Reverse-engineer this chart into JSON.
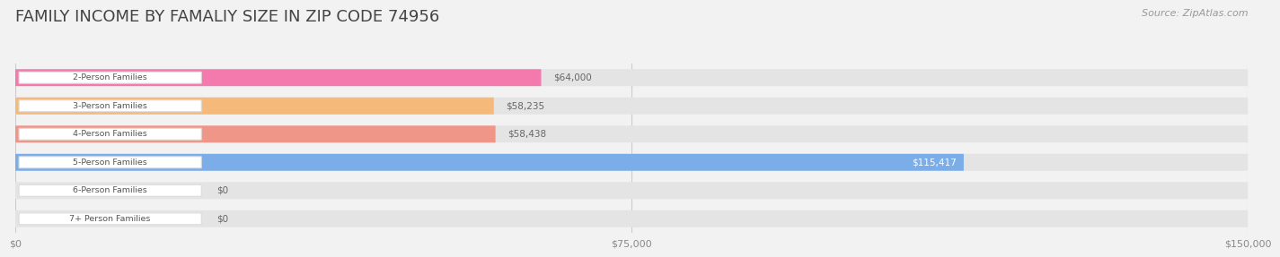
{
  "title": "FAMILY INCOME BY FAMALIY SIZE IN ZIP CODE 74956",
  "source": "Source: ZipAtlas.com",
  "categories": [
    "2-Person Families",
    "3-Person Families",
    "4-Person Families",
    "5-Person Families",
    "6-Person Families",
    "7+ Person Families"
  ],
  "values": [
    64000,
    58235,
    58438,
    115417,
    0,
    0
  ],
  "bar_colors": [
    "#F47AAE",
    "#F5B97A",
    "#F09688",
    "#7BAEE8",
    "#C4A8D8",
    "#70C8BC"
  ],
  "value_label_inside": [
    false,
    false,
    false,
    true,
    false,
    false
  ],
  "value_labels": [
    "$64,000",
    "$58,235",
    "$58,438",
    "$115,417",
    "$0",
    "$0"
  ],
  "xlim": [
    0,
    150000
  ],
  "xticklabels": [
    "$0",
    "$75,000",
    "$150,000"
  ],
  "xtick_vals": [
    0,
    75000,
    150000
  ],
  "bg_color": "#f2f2f2",
  "bar_bg_color": "#e4e4e4",
  "title_color": "#444444",
  "source_color": "#999999",
  "label_text_color": "#555555",
  "value_label_color_outside": "#666666",
  "value_label_color_inside": "#ffffff",
  "title_fontsize": 13,
  "bar_height": 0.6,
  "figsize": [
    14.06,
    3.05
  ],
  "pill_color": "#ffffff",
  "pill_edge_color": "#dddddd"
}
